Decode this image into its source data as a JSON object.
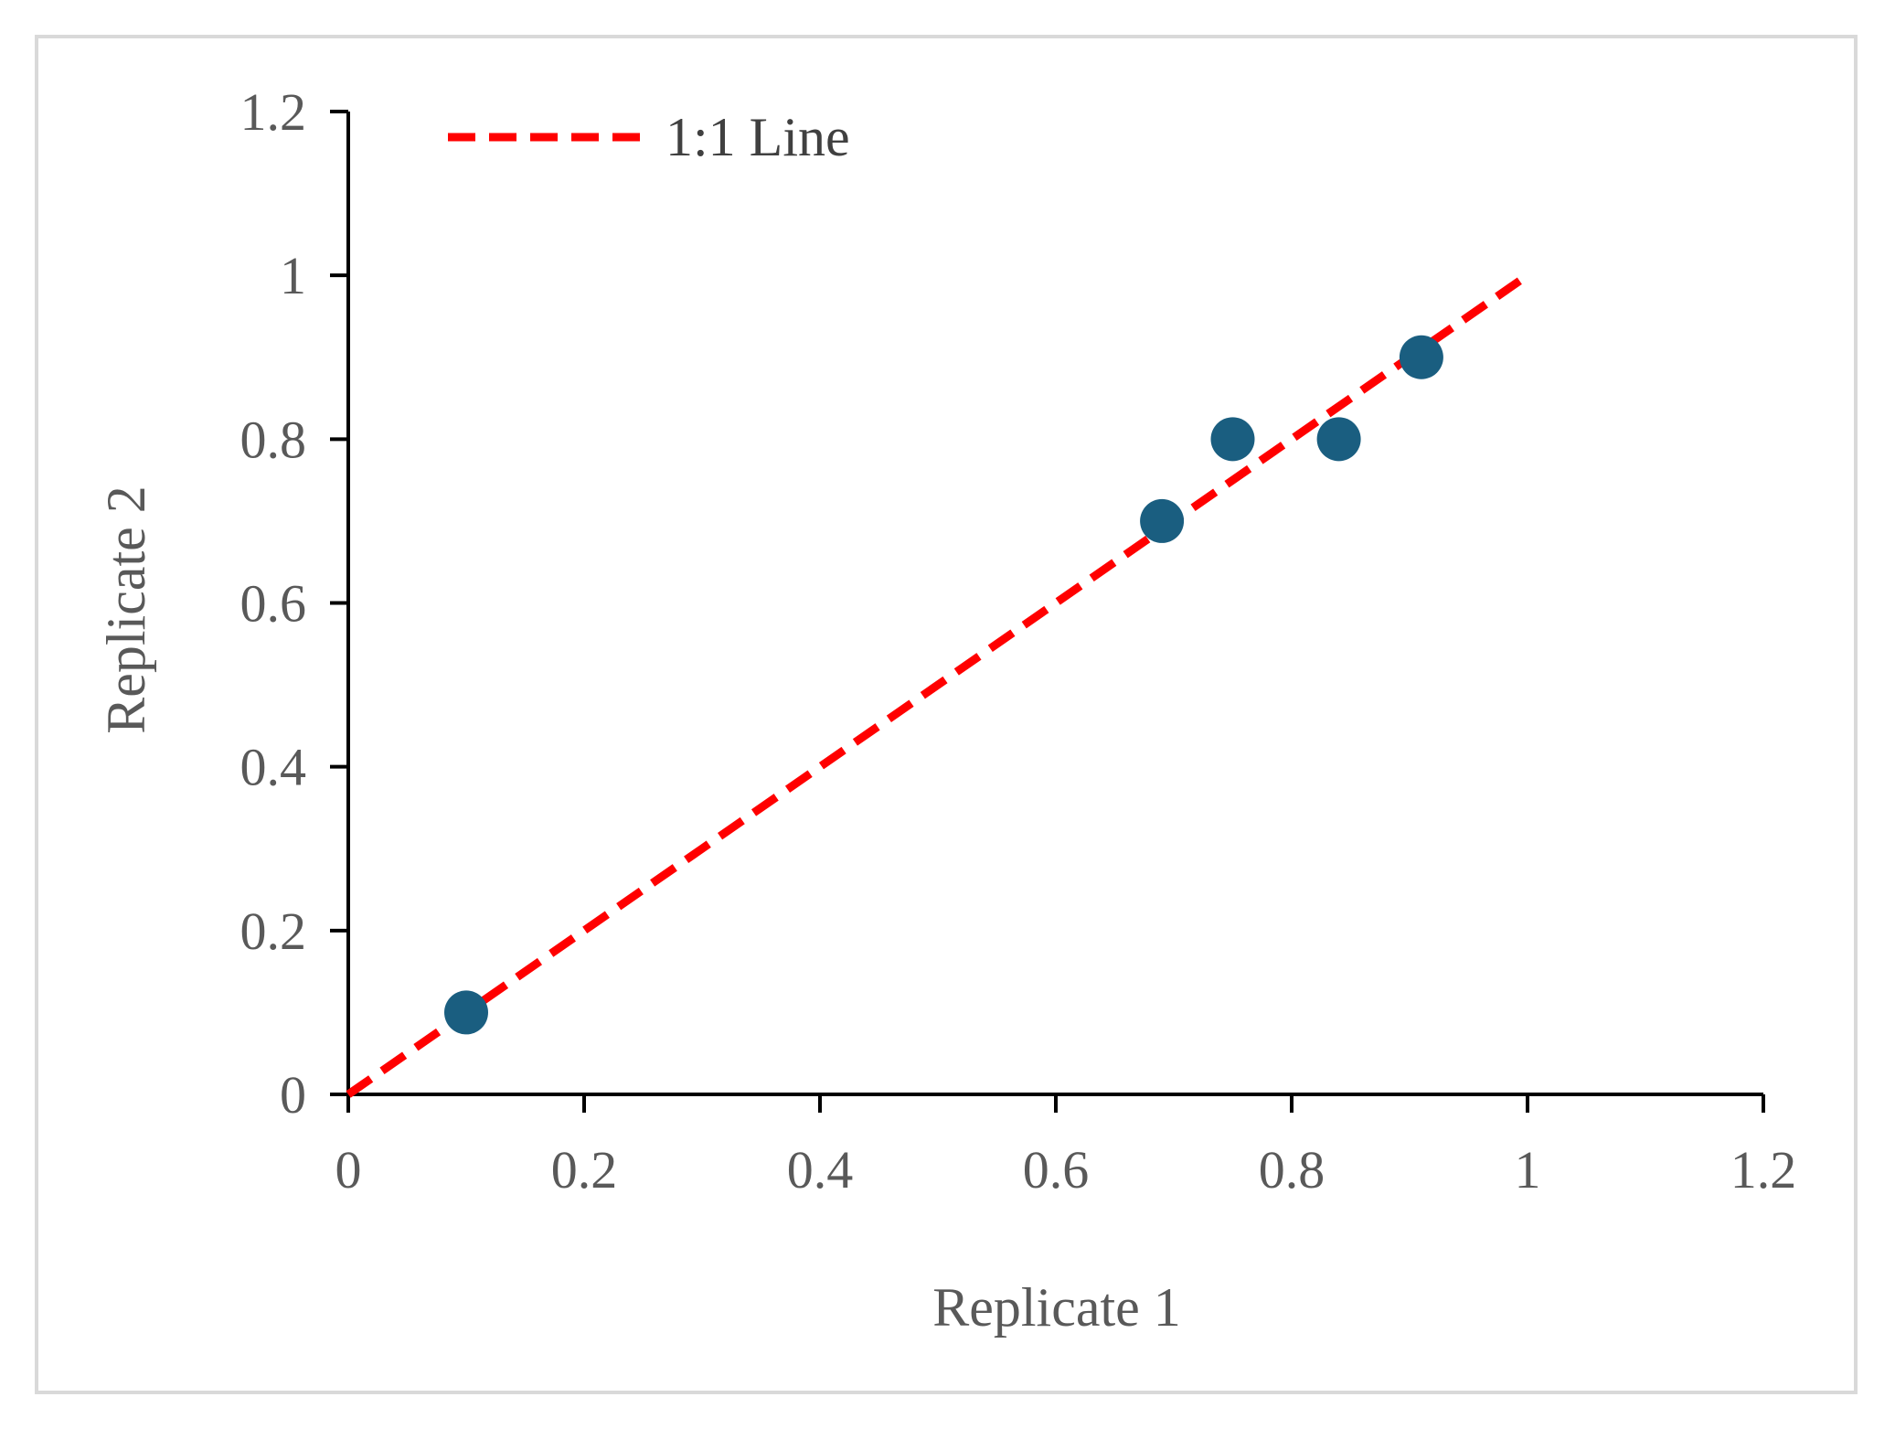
{
  "chart_data": {
    "type": "scatter",
    "title": "",
    "xlabel": "Replicate 1",
    "ylabel": "Replicate 2",
    "xlim": [
      0,
      1.2
    ],
    "ylim": [
      0,
      1.2
    ],
    "x_ticks": [
      "0",
      "0.2",
      "0.4",
      "0.6",
      "0.8",
      "1",
      "1.2"
    ],
    "y_ticks": [
      "0",
      "0.2",
      "0.4",
      "0.6",
      "0.8",
      "1",
      "1.2"
    ],
    "grid": false,
    "legend_position": "top-left",
    "series": [
      {
        "points": [
          {
            "x": 0.1,
            "y": 0.1
          },
          {
            "x": 0.69,
            "y": 0.7
          },
          {
            "x": 0.75,
            "y": 0.8
          },
          {
            "x": 0.84,
            "y": 0.8
          },
          {
            "x": 0.91,
            "y": 0.9
          }
        ],
        "color": "#1a5e80",
        "marker": "circle"
      },
      {
        "name": "1:1 Line",
        "type": "line",
        "style": "dashed",
        "color": "#ff0000",
        "points": [
          {
            "x": 0,
            "y": 0
          },
          {
            "x": 1,
            "y": 1
          }
        ]
      }
    ]
  }
}
